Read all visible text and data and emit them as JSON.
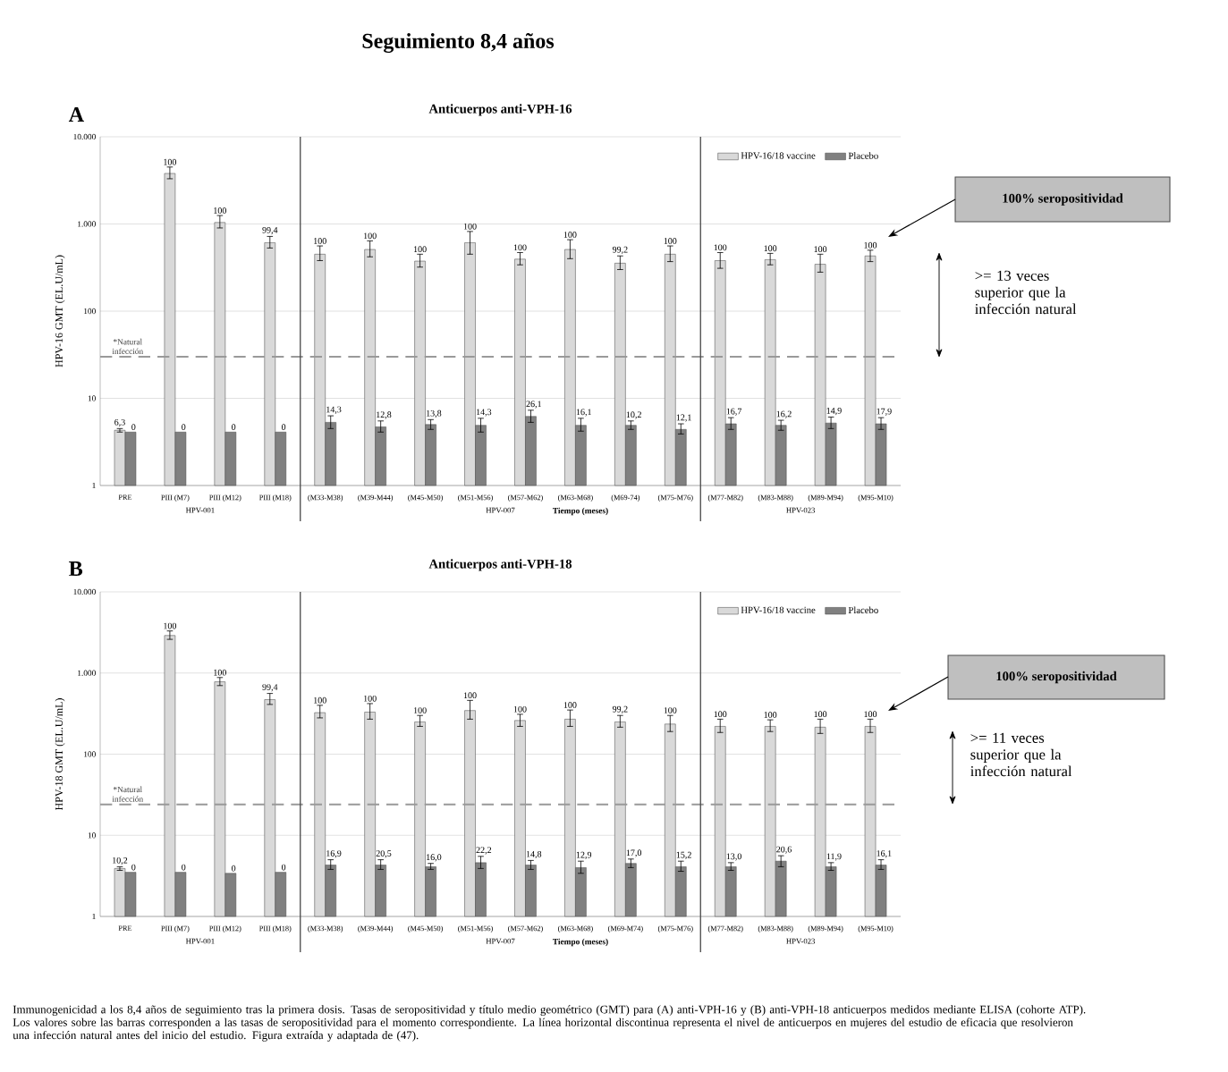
{
  "chart_data": [
    {
      "type": "bar",
      "title": "Anticuerpos anti-VPH-16",
      "xlabel": "Tiempo (meses)",
      "ylabel": "HPV-16 GMT (EL.U/mL)",
      "categories": [
        "PRE",
        "PIII (M7)",
        "PIII (M12)",
        "PIII (M18)",
        "(M33-M38)",
        "(M39-M44)",
        "(M45-M50)",
        "(M51-M56)",
        "(M57-M62)",
        "(M63-M68)",
        "(M69-74)",
        "(M75-M76)",
        "(M77-M82)",
        "(M83-M88)",
        "(M89-M94)",
        "(M95-M10)"
      ],
      "series": [
        {
          "name": "HPV-16/18 vaccine",
          "color": "#d9d9d9",
          "values": [
            4.3,
            3800,
            1040,
            610,
            450,
            510,
            375,
            610,
            395,
            510,
            355,
            450,
            380,
            390,
            345,
            430
          ],
          "errors": [
            [
              4.1,
              4.5
            ],
            [
              3300,
              4500
            ],
            [
              900,
              1250
            ],
            [
              530,
              720
            ],
            [
              380,
              560
            ],
            [
              420,
              640
            ],
            [
              320,
              450
            ],
            [
              450,
              820
            ],
            [
              340,
              470
            ],
            [
              400,
              660
            ],
            [
              300,
              430
            ],
            [
              370,
              560
            ],
            [
              310,
              470
            ],
            [
              340,
              460
            ],
            [
              280,
              450
            ],
            [
              370,
              500
            ]
          ]
        },
        {
          "name": "Placebo",
          "color": "#808080",
          "values": [
            4.1,
            4.1,
            4.1,
            4.1,
            5.3,
            4.7,
            5.0,
            4.9,
            6.2,
            4.9,
            4.9,
            4.4,
            5.1,
            4.9,
            5.2,
            5.1
          ],
          "errors": [
            null,
            null,
            null,
            null,
            [
              4.5,
              6.3
            ],
            [
              4.1,
              5.5
            ],
            [
              4.4,
              5.7
            ],
            [
              4.1,
              5.9
            ],
            [
              5.3,
              7.3
            ],
            [
              4.2,
              5.9
            ],
            [
              4.4,
              5.5
            ],
            [
              3.9,
              5.1
            ],
            [
              4.4,
              6.0
            ],
            [
              4.3,
              5.6
            ],
            [
              4.5,
              6.1
            ],
            [
              4.4,
              6.0
            ]
          ]
        }
      ],
      "ylim": [
        1,
        10000
      ],
      "yticks": [
        {
          "value": 1,
          "label": "1"
        },
        {
          "value": 10,
          "label": "10"
        },
        {
          "value": 100,
          "label": "100"
        },
        {
          "value": 1000,
          "label": "1.000"
        },
        {
          "value": 10000,
          "label": "10.000"
        }
      ],
      "log": "y",
      "grid": "y",
      "legend": "top right",
      "ref_lines": [
        {
          "axis": "y",
          "value": 30,
          "label": "*Natural infección",
          "line_style": "dashed",
          "color": "#999999"
        }
      ],
      "annotations": [
        "A",
        "HPV-001",
        "HPV-007",
        "HPV-023",
        "100% seropositividad",
        ">= 13 veces superior que la infección natural",
        "Seguimiento 8,4 años",
        "Immunogenicidad a los 8,4 años de seguimiento tras la primera dosis. Tasas de seropositividad y título medio geométrico (GMT) para (A) anti-VPH-16 y (B) anti-VPH-18 anticuerpos medidos mediante ELISA (cohorte ATP). Los valores sobre las barras corresponden a las tasas de seropositividad para el momento correspondiente. La línea horizontal discontinua representa el nivel de anticuerpos en mujeres del estudio de eficacia que resolvieron una infección natural antes del inicio del estudio. Figura extraída y adaptada de (47).",
        {
          "text": "6,3",
          "x": "PRE",
          "y": 4.3
        },
        {
          "text": "100",
          "x": "PIII (M7)",
          "y": 3800
        },
        {
          "text": "100",
          "x": "PIII (M12)",
          "y": 1040
        },
        {
          "text": "99,4",
          "x": "PIII (M18)",
          "y": 610
        },
        {
          "text": "100",
          "x": "(M33-M38)",
          "y": 450
        },
        {
          "text": "100",
          "x": "(M39-M44)",
          "y": 510
        },
        {
          "text": "100",
          "x": "(M45-M50)",
          "y": 375
        },
        {
          "text": "100",
          "x": "(M51-M56)",
          "y": 610
        },
        {
          "text": "100",
          "x": "(M57-M62)",
          "y": 395
        },
        {
          "text": "100",
          "x": "(M63-M68)",
          "y": 510
        },
        {
          "text": "99,2",
          "x": "(M69-74)",
          "y": 355
        },
        {
          "text": "100",
          "x": "(M75-M76)",
          "y": 450
        },
        {
          "text": "100",
          "x": "(M77-M82)",
          "y": 380
        },
        {
          "text": "100",
          "x": "(M83-M88)",
          "y": 390
        },
        {
          "text": "100",
          "x": "(M89-M94)",
          "y": 345
        },
        {
          "text": "100",
          "x": "(M95-M10)",
          "y": 430
        },
        {
          "text": "0",
          "x": "PRE",
          "y": 4.1
        },
        {
          "text": "0",
          "x": "PIII (M7)",
          "y": 4.1
        },
        {
          "text": "0",
          "x": "PIII (M12)",
          "y": 4.1
        },
        {
          "text": "0",
          "x": "PIII (M18)",
          "y": 4.1
        },
        {
          "text": "14,3",
          "x": "(M33-M38)",
          "y": 5.3
        },
        {
          "text": "12,8",
          "x": "(M39-M44)",
          "y": 4.7
        },
        {
          "text": "13,8",
          "x": "(M45-M50)",
          "y": 5.0
        },
        {
          "text": "14,3",
          "x": "(M51-M56)",
          "y": 4.9
        },
        {
          "text": "26,1",
          "x": "(M57-M62)",
          "y": 6.2
        },
        {
          "text": "16,1",
          "x": "(M63-M68)",
          "y": 4.9
        },
        {
          "text": "10,2",
          "x": "(M69-74)",
          "y": 4.9
        },
        {
          "text": "12,1",
          "x": "(M75-M76)",
          "y": 4.4
        },
        {
          "text": "16,7",
          "x": "(M77-M82)",
          "y": 5.1
        },
        {
          "text": "16,2",
          "x": "(M83-M88)",
          "y": 4.9
        },
        {
          "text": "14,9",
          "x": "(M89-M94)",
          "y": 5.2
        },
        {
          "text": "17,9",
          "x": "(M95-M10)",
          "y": 5.1
        }
      ]
    },
    {
      "type": "bar",
      "title": "Anticuerpos anti-VPH-18",
      "xlabel": "Tiempo (meses)",
      "ylabel": "HPV-18 GMT (EL.U/mL)",
      "categories": [
        "PRE",
        "PIII (M7)",
        "PIII (M12)",
        "PIII (M18)",
        "(M33-M38)",
        "(M39-M44)",
        "(M45-M50)",
        "(M51-M56)",
        "(M57-M62)",
        "(M63-M68)",
        "(M69-M74)",
        "(M75-M76)",
        "(M77-M82)",
        "(M83-M88)",
        "(M89-M94)",
        "(M95-M10)"
      ],
      "series": [
        {
          "name": "HPV-16/18 vaccine",
          "color": "#d9d9d9",
          "values": [
            3.9,
            2900,
            780,
            470,
            325,
            330,
            250,
            345,
            260,
            270,
            250,
            235,
            220,
            220,
            215,
            220
          ],
          "errors": [
            [
              3.7,
              4.1
            ],
            [
              2600,
              3300
            ],
            [
              700,
              880
            ],
            [
              410,
              560
            ],
            [
              280,
              400
            ],
            [
              270,
              420
            ],
            [
              220,
              300
            ],
            [
              270,
              460
            ],
            [
              220,
              310
            ],
            [
              220,
              350
            ],
            [
              215,
              300
            ],
            [
              190,
              300
            ],
            [
              185,
              270
            ],
            [
              190,
              265
            ],
            [
              180,
              270
            ],
            [
              185,
              270
            ]
          ]
        },
        {
          "name": "Placebo",
          "color": "#808080",
          "values": [
            3.5,
            3.5,
            3.4,
            3.5,
            4.3,
            4.3,
            4.1,
            4.6,
            4.3,
            4.0,
            4.5,
            4.1,
            4.1,
            4.8,
            4.1,
            4.3
          ],
          "errors": [
            null,
            null,
            null,
            null,
            [
              3.8,
              5.0
            ],
            [
              3.8,
              5.0
            ],
            [
              3.8,
              4.5
            ],
            [
              3.9,
              5.5
            ],
            [
              3.8,
              4.9
            ],
            [
              3.4,
              4.8
            ],
            [
              4.0,
              5.1
            ],
            [
              3.6,
              4.8
            ],
            [
              3.7,
              4.6
            ],
            [
              4.1,
              5.6
            ],
            [
              3.7,
              4.6
            ],
            [
              3.8,
              5.0
            ]
          ]
        }
      ],
      "ylim": [
        1,
        10000
      ],
      "yticks": [
        {
          "value": 1,
          "label": "1"
        },
        {
          "value": 10,
          "label": "10"
        },
        {
          "value": 100,
          "label": "100"
        },
        {
          "value": 1000,
          "label": "1.000"
        },
        {
          "value": 10000,
          "label": "10.000"
        }
      ],
      "log": "y",
      "grid": "y",
      "legend": "top right",
      "ref_lines": [
        {
          "axis": "y",
          "value": 24,
          "label": "*Natural infección",
          "line_style": "dashed",
          "color": "#999999"
        }
      ],
      "annotations": [
        "B",
        "HPV-001",
        "HPV-007",
        "HPV-023",
        "100% seropositividad",
        ">= 11 veces superior que la infección natural",
        {
          "text": "10,2",
          "x": "PRE",
          "y": 3.9
        },
        {
          "text": "100",
          "x": "PIII (M7)",
          "y": 2900
        },
        {
          "text": "100",
          "x": "PIII (M12)",
          "y": 780
        },
        {
          "text": "99,4",
          "x": "PIII (M18)",
          "y": 470
        },
        {
          "text": "100",
          "x": "(M33-M38)",
          "y": 325
        },
        {
          "text": "100",
          "x": "(M39-M44)",
          "y": 330
        },
        {
          "text": "100",
          "x": "(M45-M50)",
          "y": 250
        },
        {
          "text": "100",
          "x": "(M51-M56)",
          "y": 345
        },
        {
          "text": "100",
          "x": "(M57-M62)",
          "y": 260
        },
        {
          "text": "100",
          "x": "(M63-M68)",
          "y": 270
        },
        {
          "text": "99,2",
          "x": "(M69-M74)",
          "y": 250
        },
        {
          "text": "100",
          "x": "(M75-M76)",
          "y": 235
        },
        {
          "text": "100",
          "x": "(M77-M82)",
          "y": 220
        },
        {
          "text": "100",
          "x": "(M83-M88)",
          "y": 220
        },
        {
          "text": "100",
          "x": "(M89-M94)",
          "y": 215
        },
        {
          "text": "100",
          "x": "(M95-M10)",
          "y": 220
        },
        {
          "text": "0",
          "x": "PRE",
          "y": 3.5
        },
        {
          "text": "0",
          "x": "PIII (M7)",
          "y": 3.5
        },
        {
          "text": "0",
          "x": "PIII (M12)",
          "y": 3.4
        },
        {
          "text": "0",
          "x": "PIII (M18)",
          "y": 3.5
        },
        {
          "text": "16,9",
          "x": "(M33-M38)",
          "y": 4.3
        },
        {
          "text": "20,5",
          "x": "(M39-M44)",
          "y": 4.3
        },
        {
          "text": "16,0",
          "x": "(M45-M50)",
          "y": 4.1
        },
        {
          "text": "22,2",
          "x": "(M51-M56)",
          "y": 4.6
        },
        {
          "text": "14,8",
          "x": "(M57-M62)",
          "y": 4.3
        },
        {
          "text": "12,9",
          "x": "(M63-M68)",
          "y": 4.0
        },
        {
          "text": "17,0",
          "x": "(M69-M74)",
          "y": 4.5
        },
        {
          "text": "15,2",
          "x": "(M75-M76)",
          "y": 4.1
        },
        {
          "text": "13,0",
          "x": "(M77-M82)",
          "y": 4.1
        },
        {
          "text": "20,6",
          "x": "(M83-M88)",
          "y": 4.8
        },
        {
          "text": "11,9",
          "x": "(M89-M94)",
          "y": 4.1
        },
        {
          "text": "16,1",
          "x": "(M95-M10)",
          "y": 4.3
        }
      ]
    }
  ]
}
